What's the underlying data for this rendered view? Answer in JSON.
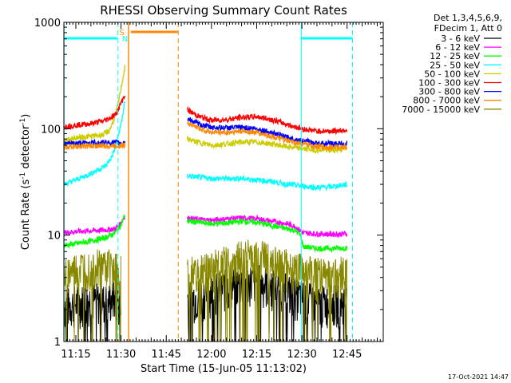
{
  "chart_data": {
    "type": "line",
    "title": "RHESSI Observing Summary Count Rates",
    "xlabel": "Start Time (15-Jun-05 11:13:02)",
    "ylabel": "Count Rate (s",
    "ylabel_sup1": "-1",
    "ylabel_mid": " detector",
    "ylabel_sup2": "-1",
    "ylabel_end": ")",
    "yscale": "log",
    "ylim": [
      1,
      1000
    ],
    "xlim_minutes": [
      11.0333,
      117.0
    ],
    "x_ticks": [
      {
        "label": "11:15",
        "min": 15
      },
      {
        "label": "11:30",
        "min": 30
      },
      {
        "label": "11:45",
        "min": 45
      },
      {
        "label": "12:00",
        "min": 60
      },
      {
        "label": "12:15",
        "min": 75
      },
      {
        "label": "12:30",
        "min": 90
      },
      {
        "label": "12:45",
        "min": 105
      }
    ],
    "y_ticks": [
      {
        "label": "1",
        "value": 1
      },
      {
        "label": "10",
        "value": 10
      },
      {
        "label": "100",
        "value": 100
      },
      {
        "label": "1000",
        "value": 1000
      }
    ],
    "legend_header": [
      "Det 1,3,4,5,6,9,",
      "FDecim 1, Att 0"
    ],
    "legend_position": "right",
    "series": [
      {
        "name": "3 - 6 keV",
        "color": "#000000",
        "style": "noisy-low",
        "seg1": [
          [
            11,
            2.2
          ],
          [
            15,
            2.3
          ],
          [
            20,
            2.5
          ],
          [
            25,
            2.4
          ],
          [
            28,
            2.6
          ],
          [
            30,
            2.3
          ]
        ],
        "seg2": [
          [
            52,
            2.5
          ],
          [
            60,
            3.0
          ],
          [
            68,
            3.5
          ],
          [
            75,
            3.8
          ],
          [
            82,
            3.2
          ],
          [
            88,
            2.8
          ],
          [
            95,
            2.3
          ],
          [
            105,
            2.4
          ]
        ]
      },
      {
        "name": "6 - 12 keV",
        "color": "#ff00ff",
        "seg1": [
          [
            11,
            10.5
          ],
          [
            15,
            10.8
          ],
          [
            20,
            11.0
          ],
          [
            25,
            11.2
          ],
          [
            28,
            11.5
          ],
          [
            29.5,
            12.5
          ],
          [
            30.5,
            14.0
          ],
          [
            31.3,
            15.0
          ]
        ],
        "seg2": [
          [
            52,
            14.5
          ],
          [
            56,
            14.0
          ],
          [
            60,
            13.8
          ],
          [
            65,
            14.2
          ],
          [
            70,
            14.5
          ],
          [
            75,
            14.3
          ],
          [
            80,
            13.5
          ],
          [
            85,
            12.8
          ],
          [
            88,
            12.0
          ],
          [
            89.5,
            11.0
          ],
          [
            90.5,
            10.5
          ],
          [
            95,
            10.3
          ],
          [
            100,
            10.2
          ],
          [
            105,
            10.3
          ]
        ]
      },
      {
        "name": "12 - 25 keV",
        "color": "#00ff00",
        "seg1": [
          [
            11,
            8.0
          ],
          [
            15,
            8.3
          ],
          [
            20,
            8.8
          ],
          [
            25,
            9.5
          ],
          [
            28,
            10.5
          ],
          [
            30,
            12.5
          ],
          [
            31.3,
            15.5
          ]
        ],
        "seg2": [
          [
            52,
            13.5
          ],
          [
            56,
            13.2
          ],
          [
            60,
            12.8
          ],
          [
            65,
            13.0
          ],
          [
            70,
            13.5
          ],
          [
            75,
            13.2
          ],
          [
            80,
            12.3
          ],
          [
            85,
            11.5
          ],
          [
            88,
            11.0
          ],
          [
            89.5,
            10.0
          ],
          [
            90.5,
            7.8
          ],
          [
            95,
            7.5
          ],
          [
            100,
            7.5
          ],
          [
            105,
            7.6
          ]
        ]
      },
      {
        "name": "25 - 50 keV",
        "color": "#00ffff",
        "seg1": [
          [
            11,
            30
          ],
          [
            15,
            33
          ],
          [
            20,
            38
          ],
          [
            25,
            45
          ],
          [
            27,
            55
          ],
          [
            28,
            65
          ],
          [
            29,
            85
          ],
          [
            30,
            110
          ],
          [
            31.3,
            180
          ]
        ],
        "seg2": [
          [
            52,
            36
          ],
          [
            56,
            35
          ],
          [
            60,
            34
          ],
          [
            65,
            34
          ],
          [
            70,
            34
          ],
          [
            75,
            33
          ],
          [
            80,
            32
          ],
          [
            85,
            30
          ],
          [
            90,
            29
          ],
          [
            95,
            28
          ],
          [
            100,
            28.5
          ],
          [
            105,
            30
          ]
        ]
      },
      {
        "name": "50 - 100 keV",
        "color": "#cccc00",
        "seg1": [
          [
            11,
            78
          ],
          [
            15,
            82
          ],
          [
            20,
            85
          ],
          [
            24,
            88
          ],
          [
            26,
            95
          ],
          [
            27,
            110
          ],
          [
            28,
            130
          ],
          [
            29,
            170
          ],
          [
            30,
            240
          ],
          [
            31.3,
            380
          ]
        ],
        "seg2": [
          [
            52,
            80
          ],
          [
            56,
            74
          ],
          [
            60,
            70
          ],
          [
            65,
            72
          ],
          [
            70,
            75
          ],
          [
            75,
            75
          ],
          [
            80,
            72
          ],
          [
            85,
            68
          ],
          [
            90,
            65
          ],
          [
            95,
            63
          ],
          [
            100,
            63
          ],
          [
            105,
            65
          ]
        ]
      },
      {
        "name": "100 - 300 keV",
        "color": "#ff0000",
        "seg1": [
          [
            11,
            105
          ],
          [
            15,
            108
          ],
          [
            20,
            112
          ],
          [
            24,
            118
          ],
          [
            26,
            125
          ],
          [
            28,
            135
          ],
          [
            29,
            150
          ],
          [
            30,
            175
          ],
          [
            31.3,
            210
          ]
        ],
        "seg2": [
          [
            52,
            150
          ],
          [
            56,
            130
          ],
          [
            60,
            120
          ],
          [
            65,
            122
          ],
          [
            70,
            128
          ],
          [
            75,
            130
          ],
          [
            80,
            122
          ],
          [
            85,
            110
          ],
          [
            90,
            100
          ],
          [
            95,
            95
          ],
          [
            100,
            95
          ],
          [
            105,
            98
          ]
        ]
      },
      {
        "name": "300 - 800 keV",
        "color": "#0000ff",
        "seg1": [
          [
            11,
            72
          ],
          [
            15,
            73
          ],
          [
            20,
            74
          ],
          [
            25,
            74
          ],
          [
            28,
            74
          ],
          [
            31.3,
            74
          ]
        ],
        "seg2": [
          [
            52,
            125
          ],
          [
            56,
            110
          ],
          [
            60,
            103
          ],
          [
            65,
            102
          ],
          [
            70,
            103
          ],
          [
            75,
            100
          ],
          [
            80,
            92
          ],
          [
            85,
            83
          ],
          [
            90,
            77
          ],
          [
            95,
            73
          ],
          [
            100,
            72
          ],
          [
            105,
            73
          ]
        ]
      },
      {
        "name": "800 - 7000 keV",
        "color": "#ff8800",
        "seg1": [
          [
            11,
            67
          ],
          [
            15,
            68
          ],
          [
            20,
            69
          ],
          [
            25,
            69
          ],
          [
            28,
            69
          ],
          [
            31.3,
            70
          ]
        ],
        "seg2": [
          [
            52,
            115
          ],
          [
            56,
            100
          ],
          [
            60,
            93
          ],
          [
            65,
            92
          ],
          [
            70,
            95
          ],
          [
            75,
            92
          ],
          [
            80,
            85
          ],
          [
            85,
            77
          ],
          [
            90,
            72
          ],
          [
            95,
            68
          ],
          [
            100,
            67
          ],
          [
            105,
            68
          ]
        ]
      },
      {
        "name": "7000 - 15000 keV",
        "color": "#888800",
        "style": "noisy-low",
        "seg1": [
          [
            11,
            4.0
          ],
          [
            15,
            4.5
          ],
          [
            20,
            5.0
          ],
          [
            25,
            5.2
          ],
          [
            28,
            4.8
          ],
          [
            30,
            4.6
          ]
        ],
        "seg2": [
          [
            52,
            4.2
          ],
          [
            60,
            5.0
          ],
          [
            68,
            6.0
          ],
          [
            75,
            6.5
          ],
          [
            82,
            5.5
          ],
          [
            88,
            4.8
          ],
          [
            95,
            4.2
          ],
          [
            105,
            4.4
          ]
        ]
      }
    ],
    "attenuator_line": {
      "color": "#ff8800",
      "label": "N"
    },
    "saa_marker": {
      "color": "#ff8800",
      "label": "S"
    },
    "footer_date": "17-Oct-2021 14:47"
  }
}
